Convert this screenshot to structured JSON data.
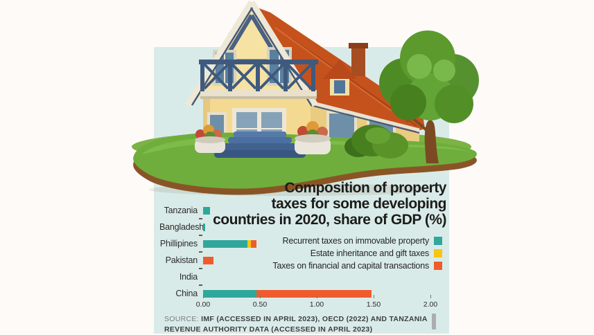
{
  "page": {
    "background": "#fdfaf8",
    "panel_color": "#d9ebe8"
  },
  "title": {
    "lines": [
      "Composition of property",
      "taxes for some developing",
      "countries in 2020, share of GDP (%)"
    ]
  },
  "legend": [
    {
      "label": "Recurrent taxes on immovable property",
      "color": "#2fa79c"
    },
    {
      "label": "Estate inheritance and gift taxes",
      "color": "#f7c513"
    },
    {
      "label": "Taxes on financial and capital transactions",
      "color": "#ee5c2d"
    }
  ],
  "chart_data": {
    "type": "bar",
    "orientation": "horizontal",
    "title": "Composition of property taxes for some developing countries in 2020, share of GDP (%)",
    "categories": [
      "Tanzania",
      "Bangladesh",
      "Phillipines",
      "Pakistan",
      "India",
      "China"
    ],
    "series": [
      {
        "name": "Recurrent taxes on immovable property",
        "color": "#2fa79c",
        "values": [
          0.06,
          0.02,
          0.39,
          0,
          0,
          0.47
        ]
      },
      {
        "name": "Estate inheritance and gift taxes",
        "color": "#f7c513",
        "values": [
          0,
          0,
          0.03,
          0,
          0,
          0
        ]
      },
      {
        "name": "Taxes on financial and capital transactions",
        "color": "#ee5c2d",
        "values": [
          0,
          0,
          0.05,
          0.09,
          0,
          1.01
        ]
      }
    ],
    "xlim": [
      0,
      2.0
    ],
    "x_ticks": [
      "0.00",
      "0.50",
      "1.00",
      "1.50",
      "2.00"
    ],
    "grid": false,
    "legend_position": "right-above-chart"
  },
  "source": {
    "prefix": "SOURCE:",
    "line1": "IMF (ACCESSED IN APRIL 2023), OECD (2022) AND TANZANIA",
    "line2": "REVENUE AUTHORITY DATA (ACCESSED IN APRIL 2023)"
  },
  "illustration": {
    "name": "house-on-grass-island",
    "colors": {
      "wall": "#f3da90",
      "roof": "#c5521d",
      "railing": "#3f5a7e",
      "grass": "#6fae3d",
      "soil": "#8a5526"
    }
  }
}
